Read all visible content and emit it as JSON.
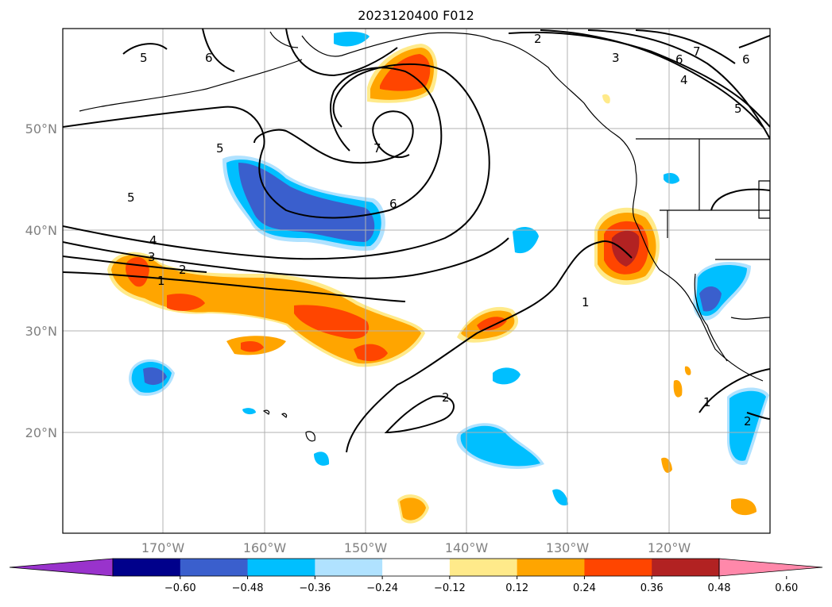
{
  "title": "2023120400 F012",
  "map": {
    "projection": "PlateCarree",
    "lon_range": [
      -180,
      -110
    ],
    "lat_range": [
      10,
      60
    ],
    "lat_labels": [
      "50°N",
      "40°N",
      "30°N",
      "20°N"
    ],
    "lon_labels": [
      "170°W",
      "160°W",
      "150°W",
      "140°W",
      "130°W",
      "120°W"
    ],
    "gridline_color": "#b0b0b0",
    "coastline_color": "#000000"
  },
  "colorbar": {
    "extend": "both",
    "levels": [
      "−0.60",
      "−0.48",
      "−0.36",
      "−0.24",
      "−0.12",
      "0.12",
      "0.24",
      "0.36",
      "0.48",
      "0.60"
    ],
    "colors": [
      "#9933cc",
      "#00008b",
      "#3a5fcd",
      "#00bfff",
      "#b0e2ff",
      "#ffffff",
      "#ffea8a",
      "#ffa500",
      "#ff4500",
      "#b22222",
      "#ff88aa"
    ]
  },
  "contours": {
    "labels": [
      "1",
      "2",
      "3",
      "4",
      "5",
      "6",
      "7"
    ]
  }
}
